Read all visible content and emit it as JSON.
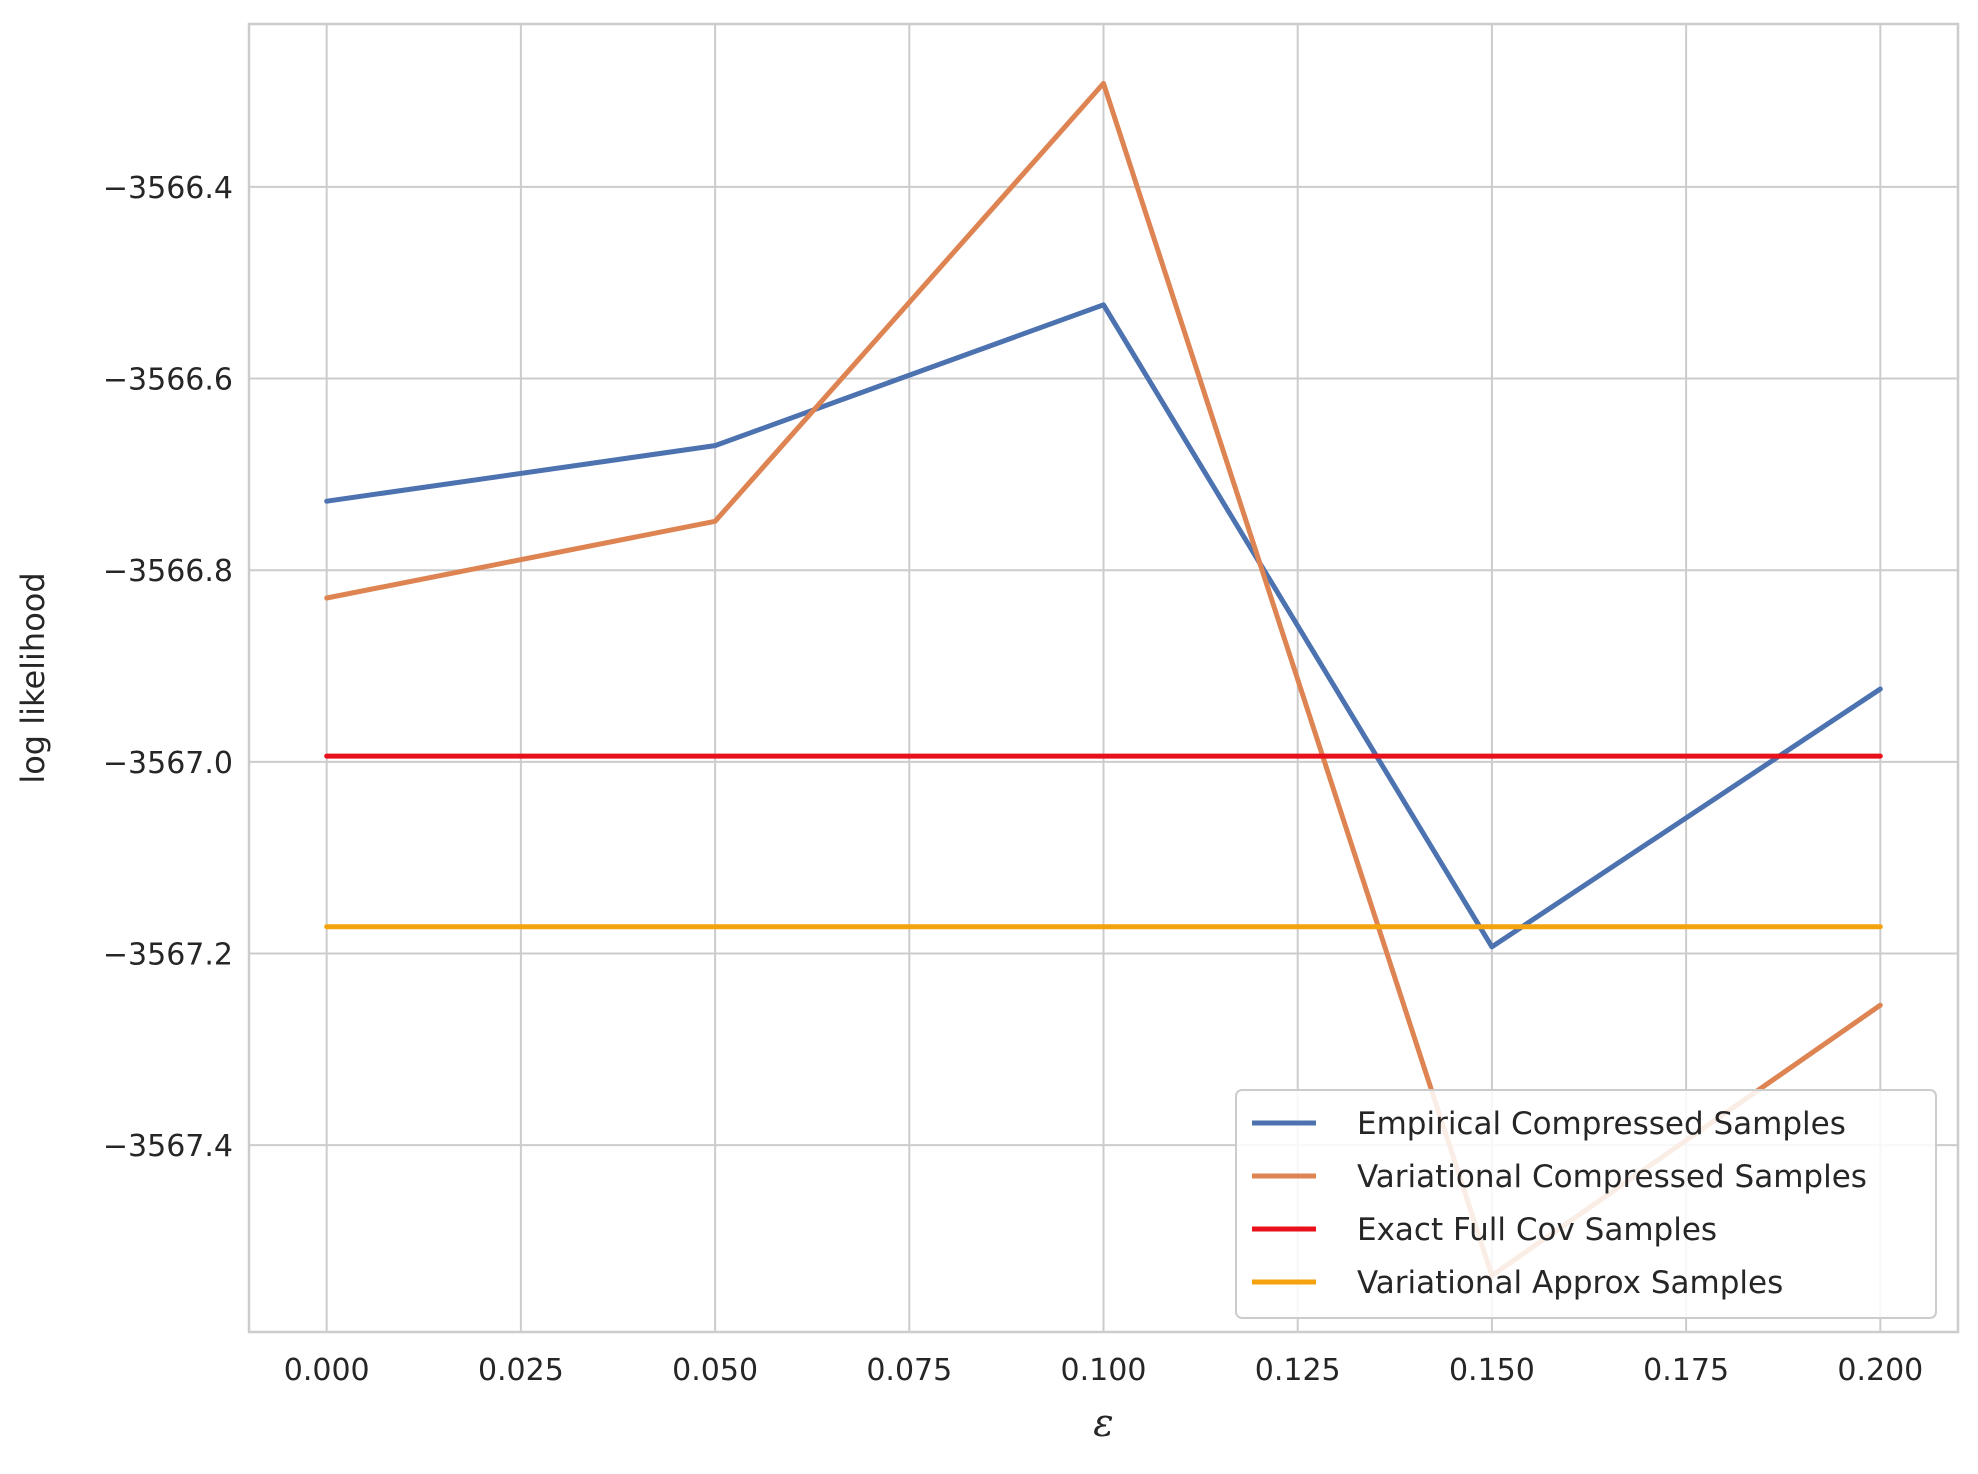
{
  "chart_data": {
    "type": "line",
    "xlabel": "ε",
    "ylabel": "log likelihood",
    "x": [
      0.0,
      0.05,
      0.1,
      0.15,
      0.2
    ],
    "xlim": [
      -0.01,
      0.21
    ],
    "ylim": [
      -3567.595,
      -3566.23
    ],
    "grid": true,
    "legend_position": "bottom-right",
    "x_ticks": [
      0.0,
      0.025,
      0.05,
      0.075,
      0.1,
      0.125,
      0.15,
      0.175,
      0.2
    ],
    "x_tick_labels": [
      "0.000",
      "0.025",
      "0.050",
      "0.075",
      "0.100",
      "0.125",
      "0.150",
      "0.175",
      "0.200"
    ],
    "y_ticks": [
      -3566.4,
      -3566.6,
      -3566.8,
      -3567.0,
      -3567.2,
      -3567.4
    ],
    "y_tick_labels": [
      "−3566.4",
      "−3566.6",
      "−3566.8",
      "−3567.0",
      "−3567.2",
      "−3567.4"
    ],
    "series": [
      {
        "name": "Empirical Compressed Samples",
        "color": "#4c72b0",
        "values": [
          -3566.728,
          -3566.67,
          -3566.523,
          -3567.193,
          -3566.924
        ]
      },
      {
        "name": "Variational Compressed Samples",
        "color": "#dd8452",
        "values": [
          -3566.829,
          -3566.749,
          -3566.292,
          -3567.536,
          -3567.254
        ]
      },
      {
        "name": "Exact Full Cov Samples",
        "color": "#e8101a",
        "values": [
          -3566.994,
          -3566.994,
          -3566.994,
          -3566.994,
          -3566.994
        ]
      },
      {
        "name": "Variational Approx Samples",
        "color": "#f5a20f",
        "values": [
          -3567.172,
          -3567.172,
          -3567.172,
          -3567.172,
          -3567.172
        ]
      }
    ]
  }
}
